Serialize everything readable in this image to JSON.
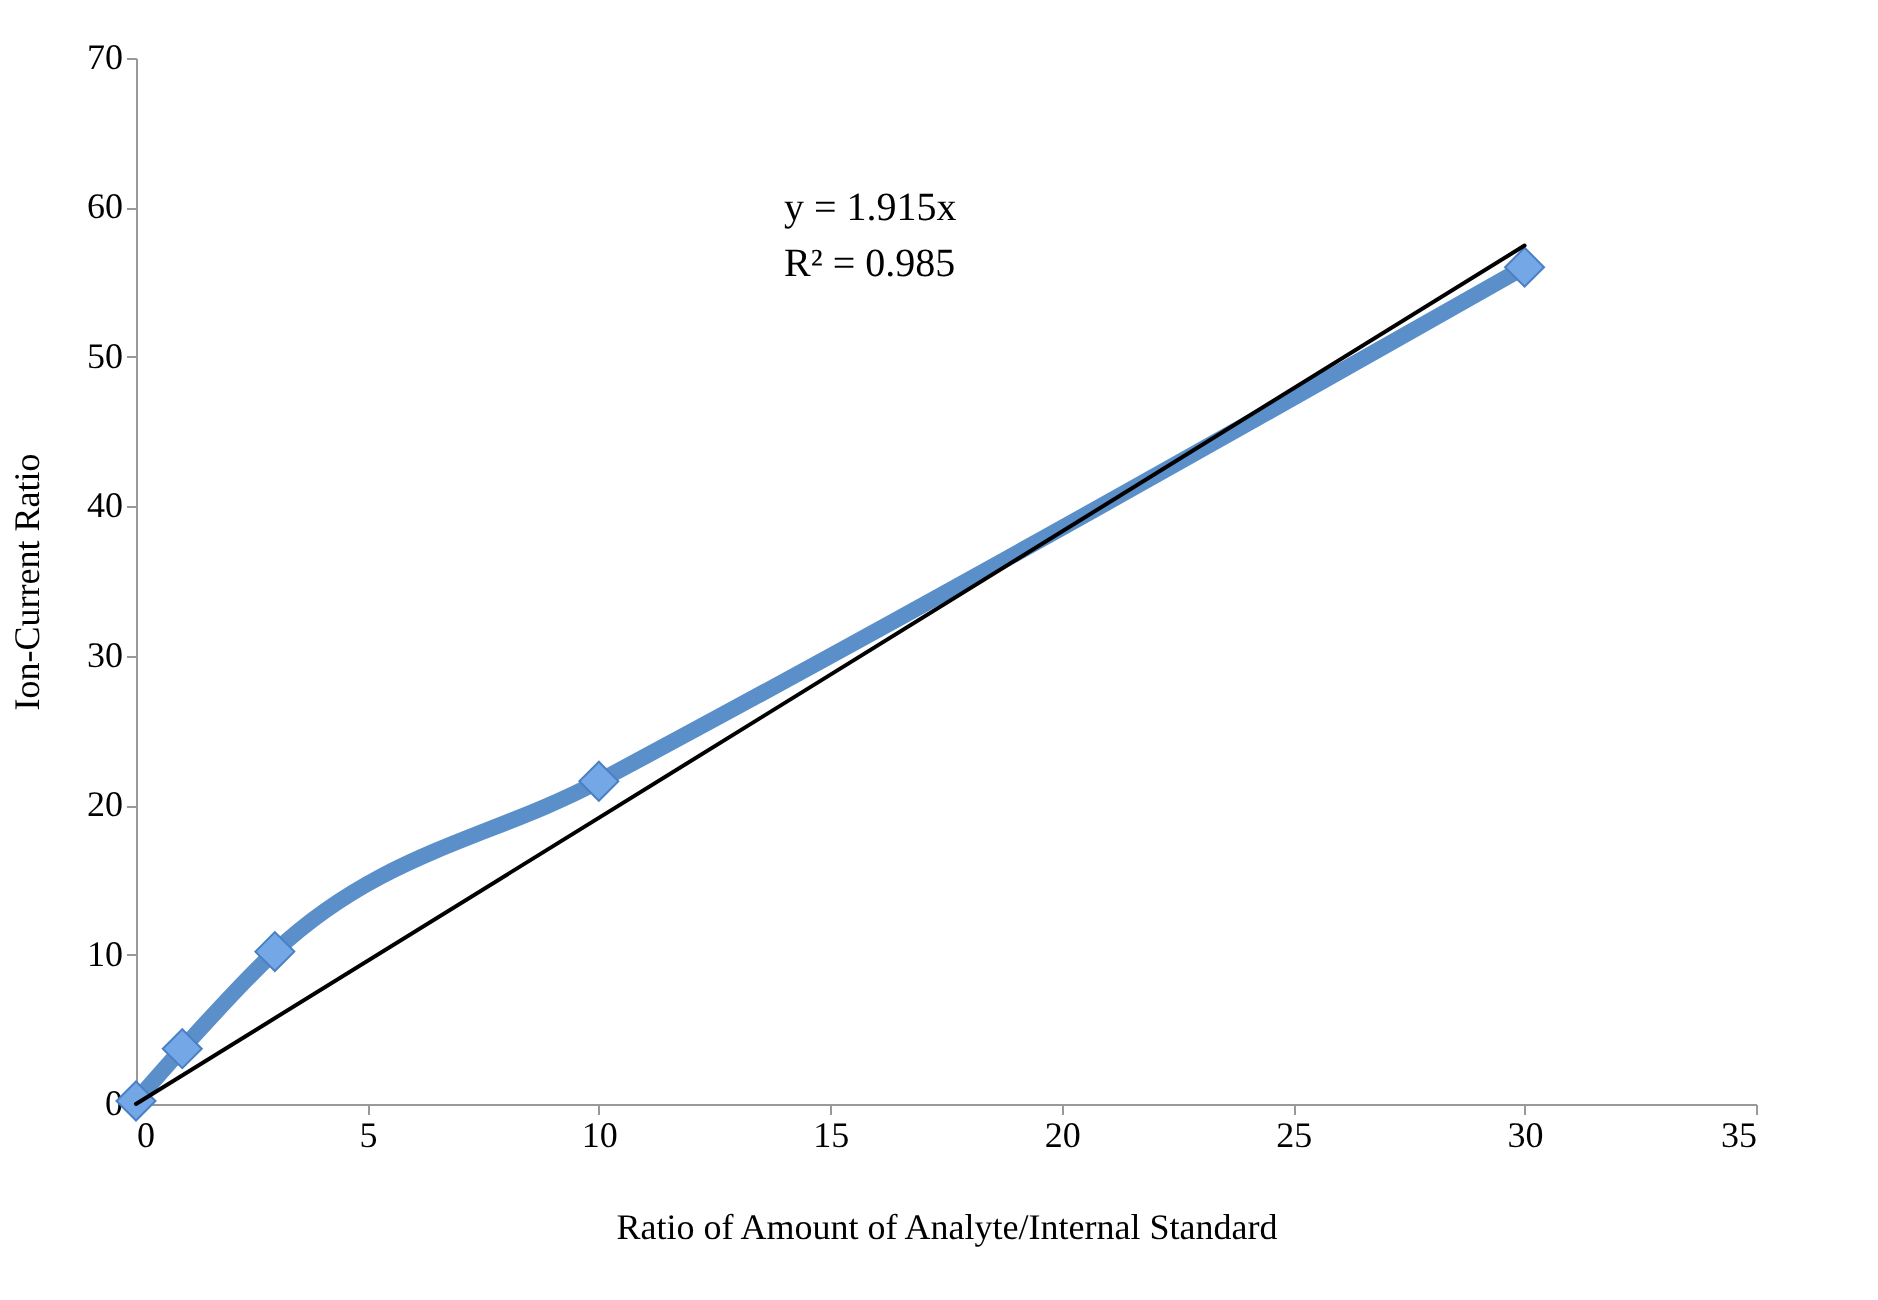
{
  "chart_data": {
    "type": "line",
    "xlabel": "Ratio of Amount of Analyte/Internal Standard",
    "ylabel": "Ion-Current Ratio",
    "annotations": [
      "y = 1.915x",
      "R² = 0.985"
    ],
    "x": [
      0,
      1,
      3,
      10,
      30
    ],
    "series": [
      {
        "color": "#5b8fc9",
        "values": [
          0.2,
          3.7,
          10.2,
          21.6,
          56
        ],
        "marker": "diamond"
      },
      {
        "type": "line",
        "color": "#000000",
        "x": [
          0,
          30
        ],
        "values": [
          0,
          57.45
        ],
        "marker": "none"
      }
    ],
    "xlim": [
      0,
      35
    ],
    "xticks": [
      0,
      5,
      10,
      15,
      20,
      25,
      30,
      35
    ],
    "ylim": [
      0,
      70
    ],
    "yticks": [
      0,
      10,
      20,
      30,
      40,
      50,
      60,
      70
    ],
    "grid": false
  }
}
